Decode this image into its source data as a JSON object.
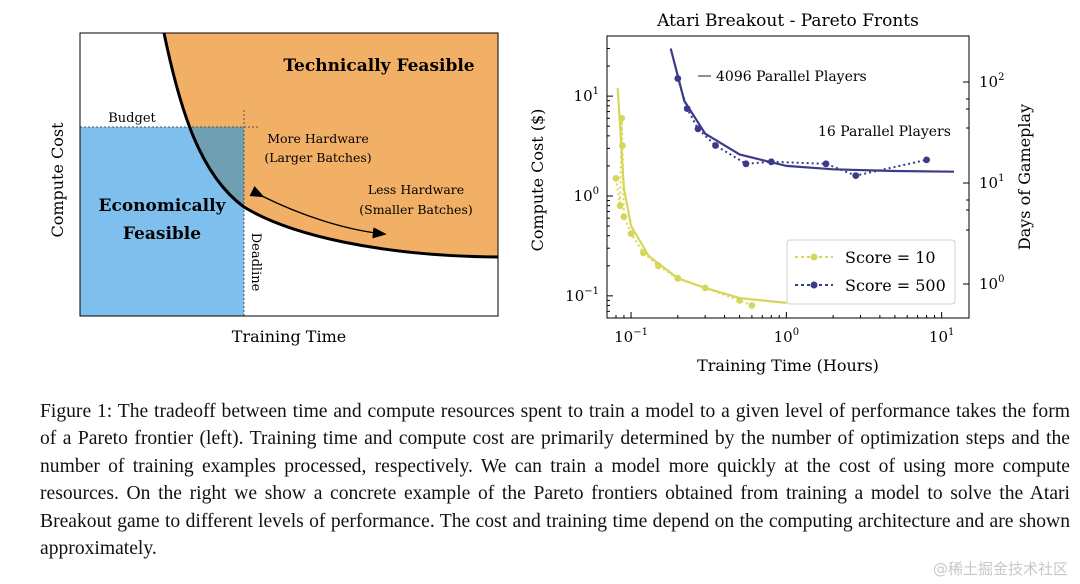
{
  "left_panel": {
    "region_technical": "Technically Feasible",
    "region_economic_line1": "Economically",
    "region_economic_line2": "Feasible",
    "budget_label": "Budget",
    "deadline_label": "Deadline",
    "more_hw_line1": "More Hardware",
    "more_hw_line2": "(Larger Batches)",
    "less_hw_line1": "Less Hardware",
    "less_hw_line2": "(Smaller Batches)",
    "xlabel": "Training Time",
    "ylabel": "Compute Cost",
    "colors": {
      "technical": "#f2b066",
      "economic": "#7fbfee",
      "overlap": "#6f9fb0",
      "frontier": "#000000"
    }
  },
  "chart_data": {
    "type": "scatter",
    "title": "Atari Breakout - Pareto Fronts",
    "xlabel": "Training Time (Hours)",
    "ylabel": "Compute Cost ($)",
    "ylabel_right": "Days of Gameplay",
    "xscale": "log",
    "yscale": "log",
    "xlim": [
      0.07,
      15
    ],
    "ylim": [
      0.06,
      40
    ],
    "x_ticks": [
      "10^{-1}",
      "10^{0}",
      "10^{1}"
    ],
    "y_ticks": [
      "10^{-1}",
      "10^{0}",
      "10^{1}"
    ],
    "y_right_ticks": [
      "10^{0}",
      "10^{1}",
      "10^{2}"
    ],
    "grid": false,
    "legend_position": "lower-right",
    "annotations": [
      "4096 Parallel Players",
      "16 Parallel Players"
    ],
    "series": [
      {
        "name": "Score = 10",
        "color": "#d6d65a",
        "points": [
          [
            0.08,
            1.5
          ],
          [
            0.085,
            0.8
          ],
          [
            0.087,
            6
          ],
          [
            0.088,
            3.2
          ],
          [
            0.09,
            0.62
          ],
          [
            0.1,
            0.42
          ],
          [
            0.12,
            0.27
          ],
          [
            0.15,
            0.2
          ],
          [
            0.2,
            0.15
          ],
          [
            0.3,
            0.12
          ],
          [
            0.5,
            0.09
          ],
          [
            0.6,
            0.08
          ]
        ],
        "fit": [
          [
            0.082,
            12
          ],
          [
            0.09,
            1.2
          ],
          [
            0.1,
            0.5
          ],
          [
            0.13,
            0.25
          ],
          [
            0.2,
            0.15
          ],
          [
            0.3,
            0.12
          ],
          [
            0.5,
            0.095
          ],
          [
            1.0,
            0.085
          ]
        ]
      },
      {
        "name": "Score = 500",
        "color": "#3b3b8a",
        "points": [
          [
            0.2,
            15
          ],
          [
            0.23,
            7.5
          ],
          [
            0.27,
            4.7
          ],
          [
            0.35,
            3.2
          ],
          [
            0.55,
            2.1
          ],
          [
            0.8,
            2.2
          ],
          [
            1.8,
            2.1
          ],
          [
            2.8,
            1.6
          ],
          [
            8,
            2.3
          ]
        ],
        "fit": [
          [
            0.18,
            30
          ],
          [
            0.22,
            9
          ],
          [
            0.3,
            4.2
          ],
          [
            0.5,
            2.6
          ],
          [
            1.0,
            2.0
          ],
          [
            2.0,
            1.85
          ],
          [
            5.0,
            1.78
          ],
          [
            12.0,
            1.75
          ]
        ]
      }
    ]
  },
  "caption": "Figure 1: The tradeoff between time and compute resources spent to train a model to a given level of performance takes the form of a Pareto frontier (left). Training time and compute cost are primarily determined by the number of optimization steps and the number of training examples processed, respectively. We can train a model more quickly at the cost of using more compute resources. On the right we show a concrete example of the Pareto frontiers obtained from training a model to solve the Atari Breakout game to different levels of performance. The cost and training time depend on the computing architecture and are shown approximately.",
  "watermark": "@稀土掘金技术社区"
}
